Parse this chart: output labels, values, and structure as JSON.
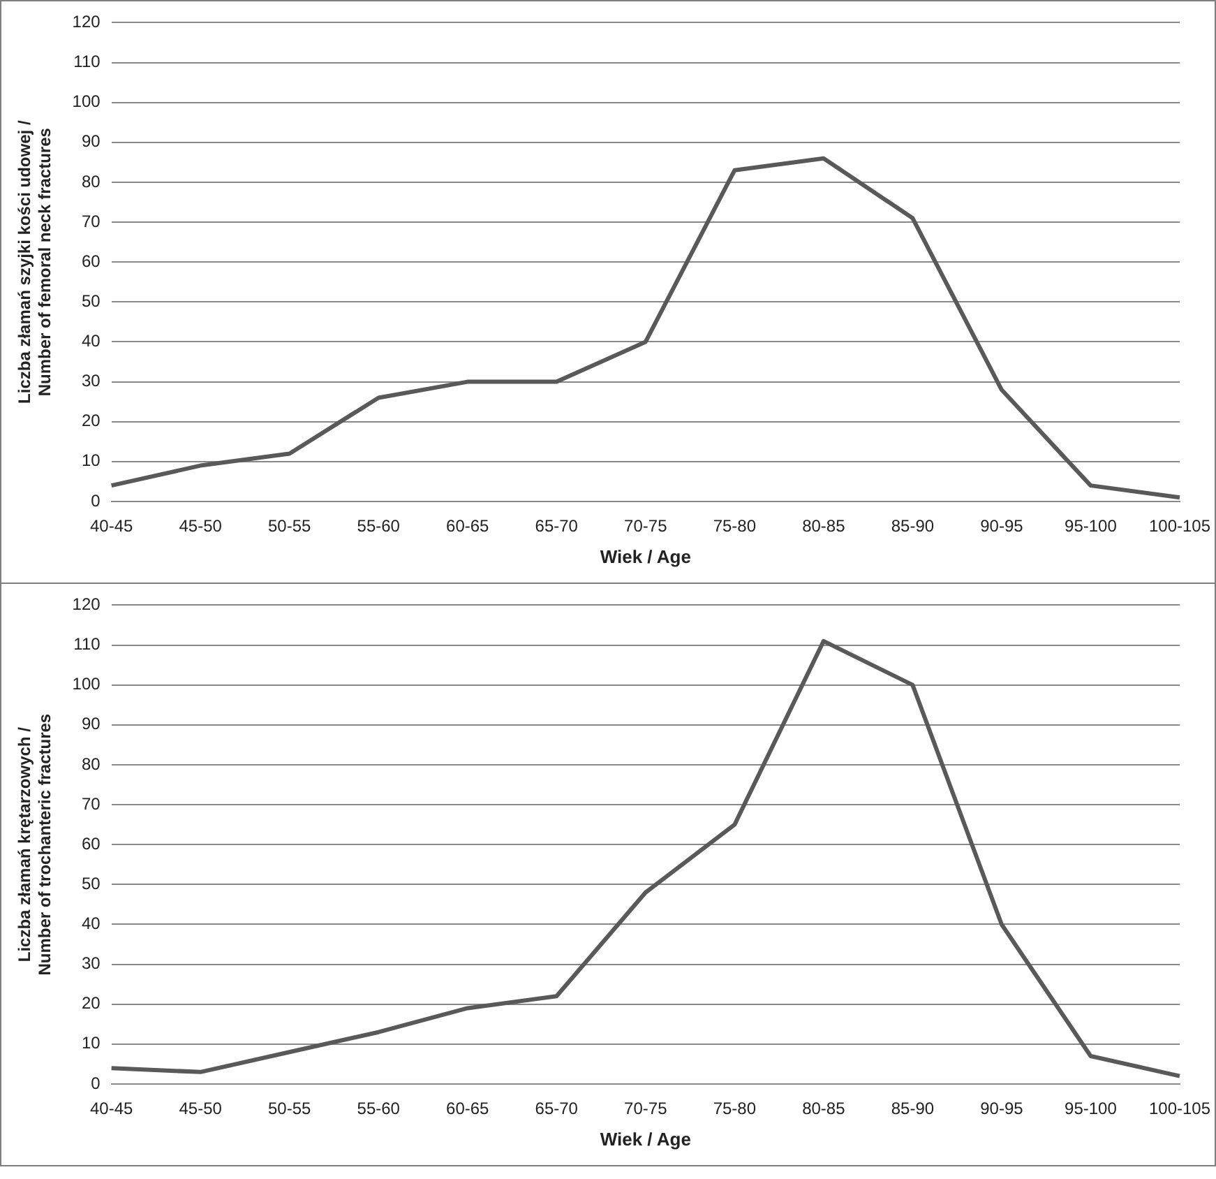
{
  "chart_data": [
    {
      "type": "line",
      "xlabel": "Wiek / Age",
      "ylabel": "Liczba złamań szyjki kości udowej /\nNumber of femoral neck fractures",
      "categories": [
        "40-45",
        "45-50",
        "50-55",
        "55-60",
        "60-65",
        "65-70",
        "70-75",
        "75-80",
        "80-85",
        "85-90",
        "90-95",
        "95-100",
        "100-105"
      ],
      "series": [
        {
          "color": "#595959",
          "values": [
            4,
            9,
            12,
            26,
            30,
            30,
            40,
            83,
            86,
            71,
            28,
            4,
            1
          ]
        }
      ],
      "ylim": [
        0,
        120
      ],
      "yticks": [
        0,
        10,
        20,
        30,
        40,
        50,
        60,
        70,
        80,
        90,
        100,
        110,
        120
      ],
      "grid": "y",
      "legend": false,
      "marker": "none"
    },
    {
      "type": "line",
      "xlabel": "Wiek / Age",
      "ylabel": "Liczba złamań krętarzowych /\nNumber of trochanteric fractures",
      "categories": [
        "40-45",
        "45-50",
        "50-55",
        "55-60",
        "60-65",
        "65-70",
        "70-75",
        "75-80",
        "80-85",
        "85-90",
        "90-95",
        "95-100",
        "100-105"
      ],
      "series": [
        {
          "color": "#595959",
          "values": [
            4,
            3,
            8,
            13,
            19,
            22,
            48,
            65,
            111,
            100,
            40,
            7,
            2
          ]
        }
      ],
      "ylim": [
        0,
        120
      ],
      "yticks": [
        0,
        10,
        20,
        30,
        40,
        50,
        60,
        70,
        80,
        90,
        100,
        110,
        120
      ],
      "grid": "y",
      "legend": false,
      "marker": "none"
    }
  ]
}
